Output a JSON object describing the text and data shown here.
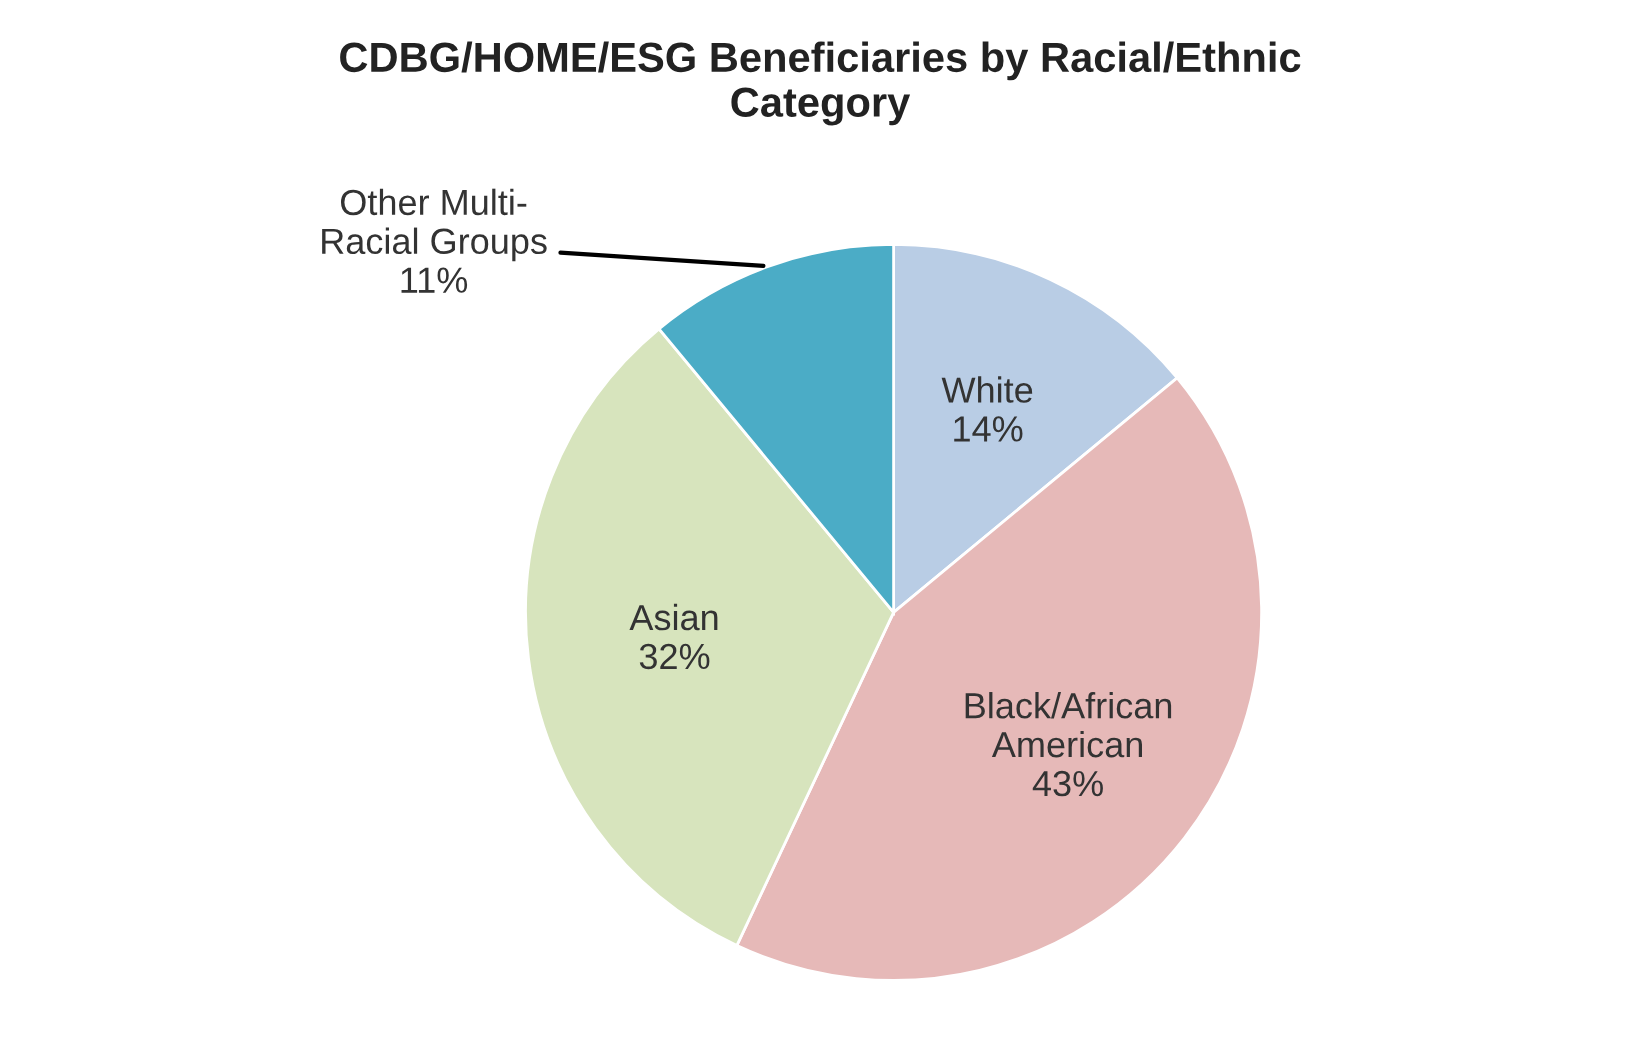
{
  "chart_data": {
    "type": "pie",
    "title": "CDBG/HOME/ESG Beneficiaries by Racial/Ethnic\nCategory",
    "categories": [
      "White",
      "Black/African\nAmerican",
      "Asian",
      "Other Multi-\nRacial Groups"
    ],
    "values": [
      14,
      43,
      32,
      11
    ],
    "value_labels": [
      "14%",
      "43%",
      "32%",
      "11%"
    ],
    "colors": [
      "#b9cde5",
      "#e6b9b8",
      "#d7e4bd",
      "#4bacc6"
    ],
    "legend": false
  }
}
